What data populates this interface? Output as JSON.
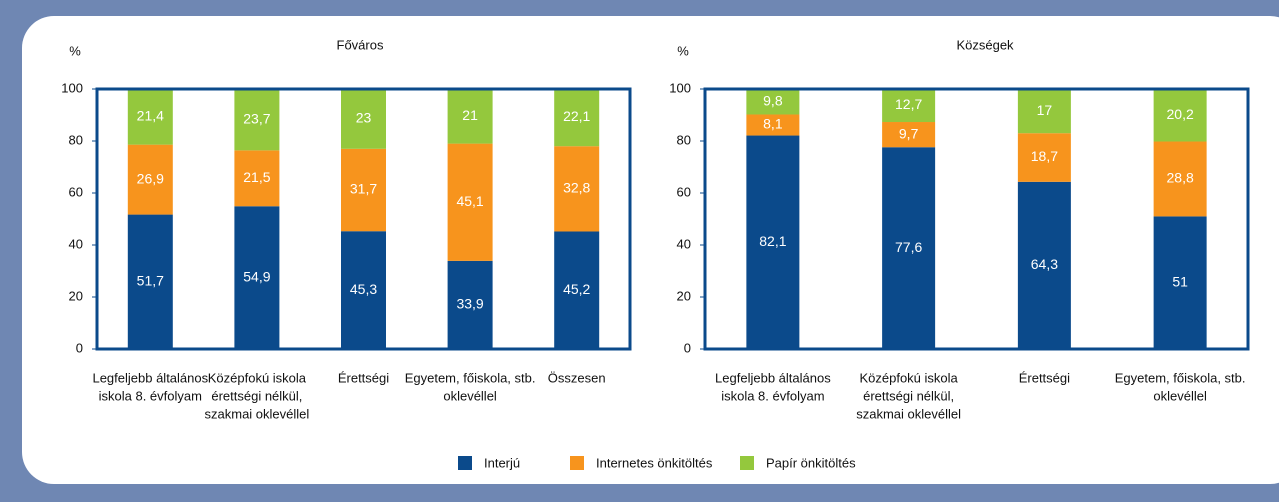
{
  "chart_data": [
    {
      "type": "stacked_bar",
      "title": "Főváros",
      "y_label": "%",
      "categories": [
        [
          "Legfeljebb általános",
          "iskola 8. évfolyam"
        ],
        [
          "Középfokú iskola",
          "érettségi nélkül,",
          "szakmai oklevéllel"
        ],
        [
          "Érettségi"
        ],
        [
          "Egyetem, főiskola, stb.",
          "oklevéllel"
        ],
        [
          "Összesen"
        ]
      ],
      "series": [
        {
          "name": "Interjú",
          "color": "#0b4a8b",
          "values": [
            51.7,
            54.9,
            45.3,
            33.9,
            45.2
          ],
          "value_labels": [
            "51,7",
            "54,9",
            "45,3",
            "33,9",
            "45,2"
          ]
        },
        {
          "name": "Internetes önkitöltés",
          "color": "#f7941d",
          "values": [
            26.9,
            21.5,
            31.7,
            45.1,
            32.8
          ],
          "value_labels": [
            "26,9",
            "21,5",
            "31,7",
            "45,1",
            "32,8"
          ]
        },
        {
          "name": "Papír önkitöltés",
          "color": "#94c83d",
          "values": [
            21.4,
            23.7,
            23,
            21,
            22.1
          ],
          "value_labels": [
            "21,4",
            "23,7",
            "23",
            "21",
            "22,1"
          ]
        }
      ],
      "ylim": [
        0,
        100
      ],
      "yticks": [
        0,
        20,
        40,
        60,
        80,
        100
      ]
    },
    {
      "type": "stacked_bar",
      "title": "Községek",
      "y_label": "%",
      "categories": [
        [
          "Legfeljebb általános",
          "iskola 8. évfolyam"
        ],
        [
          "Középfokú iskola",
          "érettségi nélkül,",
          "szakmai oklevéllel"
        ],
        [
          "Érettségi"
        ],
        [
          "Egyetem, főiskola, stb.",
          "oklevéllel"
        ]
      ],
      "series": [
        {
          "color": "#0b4a8b",
          "values": [
            82.1,
            77.6,
            64.3,
            51
          ],
          "value_labels": [
            "82,1",
            "77,6",
            "64,3",
            "51"
          ]
        },
        {
          "color": "#f7941d",
          "values": [
            8.1,
            9.7,
            18.7,
            28.8
          ],
          "value_labels": [
            "8,1",
            "9,7",
            "18,7",
            "28,8"
          ]
        },
        {
          "color": "#94c83d",
          "values": [
            9.8,
            12.7,
            17,
            20.2
          ],
          "value_labels": [
            "9,8",
            "12,7",
            "17",
            "20,2"
          ]
        }
      ],
      "ylim": [
        0,
        100
      ],
      "yticks": [
        0,
        20,
        40,
        60,
        80,
        100
      ]
    }
  ]
}
